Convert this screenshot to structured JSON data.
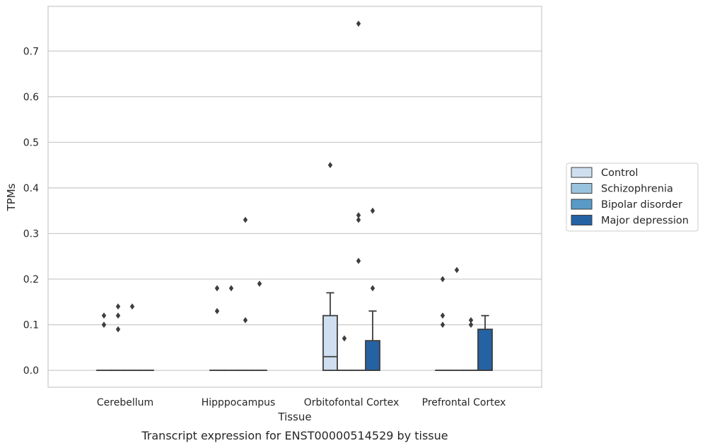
{
  "caption": "Transcript expression for ENST00000514529 by tissue",
  "chart_data": {
    "type": "boxplot",
    "xlabel": "Tissue",
    "ylabel": "TPMs",
    "ylim": [
      -0.037,
      0.798
    ],
    "yticks": [
      0.0,
      0.1,
      0.2,
      0.3,
      0.4,
      0.5,
      0.6,
      0.7
    ],
    "ytick_labels": [
      "0.0",
      "0.1",
      "0.2",
      "0.3",
      "0.4",
      "0.5",
      "0.6",
      "0.7"
    ],
    "grid": "horizontal",
    "legend_position": "right",
    "categories": [
      "Cerebellum",
      "Hipppocampus",
      "Orbitofontal Cortex",
      "Prefrontal Cortex"
    ],
    "series": [
      {
        "name": "Control",
        "color": "#cfdff0",
        "boxes": [
          {
            "q1": 0,
            "median": 0,
            "q3": 0,
            "whislo": 0,
            "whishi": 0,
            "fliers": [
              0.12,
              0.1
            ]
          },
          {
            "q1": 0,
            "median": 0,
            "q3": 0,
            "whislo": 0,
            "whishi": 0,
            "fliers": [
              0.18,
              0.13
            ]
          },
          {
            "q1": 0,
            "median": 0.03,
            "q3": 0.12,
            "whislo": 0,
            "whishi": 0.17,
            "fliers": [
              0.45
            ]
          },
          {
            "q1": 0,
            "median": 0,
            "q3": 0,
            "whislo": 0,
            "whishi": 0,
            "fliers": [
              0.2,
              0.12,
              0.1
            ]
          }
        ]
      },
      {
        "name": "Schizophrenia",
        "color": "#9ac3de",
        "boxes": [
          {
            "q1": 0,
            "median": 0,
            "q3": 0,
            "whislo": 0,
            "whishi": 0,
            "fliers": [
              0.14,
              0.12,
              0.09
            ]
          },
          {
            "q1": 0,
            "median": 0,
            "q3": 0,
            "whislo": 0,
            "whishi": 0,
            "fliers": [
              0.18
            ]
          },
          {
            "q1": 0,
            "median": 0,
            "q3": 0,
            "whislo": 0,
            "whishi": 0,
            "fliers": [
              0.07
            ]
          },
          {
            "q1": 0,
            "median": 0,
            "q3": 0,
            "whislo": 0,
            "whishi": 0,
            "fliers": [
              0.22
            ]
          }
        ]
      },
      {
        "name": "Bipolar disorder",
        "color": "#5a9ac6",
        "boxes": [
          {
            "q1": 0,
            "median": 0,
            "q3": 0,
            "whislo": 0,
            "whishi": 0,
            "fliers": [
              0.14
            ]
          },
          {
            "q1": 0,
            "median": 0,
            "q3": 0,
            "whislo": 0,
            "whishi": 0,
            "fliers": [
              0.33,
              0.11
            ]
          },
          {
            "q1": 0,
            "median": 0,
            "q3": 0,
            "whislo": 0,
            "whishi": 0,
            "fliers": [
              0.76,
              0.34,
              0.33,
              0.24
            ]
          },
          {
            "q1": 0,
            "median": 0,
            "q3": 0,
            "whislo": 0,
            "whishi": 0,
            "fliers": [
              0.11,
              0.1
            ]
          }
        ]
      },
      {
        "name": "Major depression",
        "color": "#2562a3",
        "boxes": [
          {
            "q1": 0,
            "median": 0,
            "q3": 0,
            "whislo": 0,
            "whishi": 0,
            "fliers": []
          },
          {
            "q1": 0,
            "median": 0,
            "q3": 0,
            "whislo": 0,
            "whishi": 0,
            "fliers": [
              0.19
            ]
          },
          {
            "q1": 0,
            "median": 0,
            "q3": 0.065,
            "whislo": 0,
            "whishi": 0.13,
            "fliers": [
              0.35,
              0.18
            ]
          },
          {
            "q1": 0,
            "median": 0,
            "q3": 0.09,
            "whislo": 0,
            "whishi": 0.12,
            "fliers": []
          }
        ]
      }
    ]
  }
}
